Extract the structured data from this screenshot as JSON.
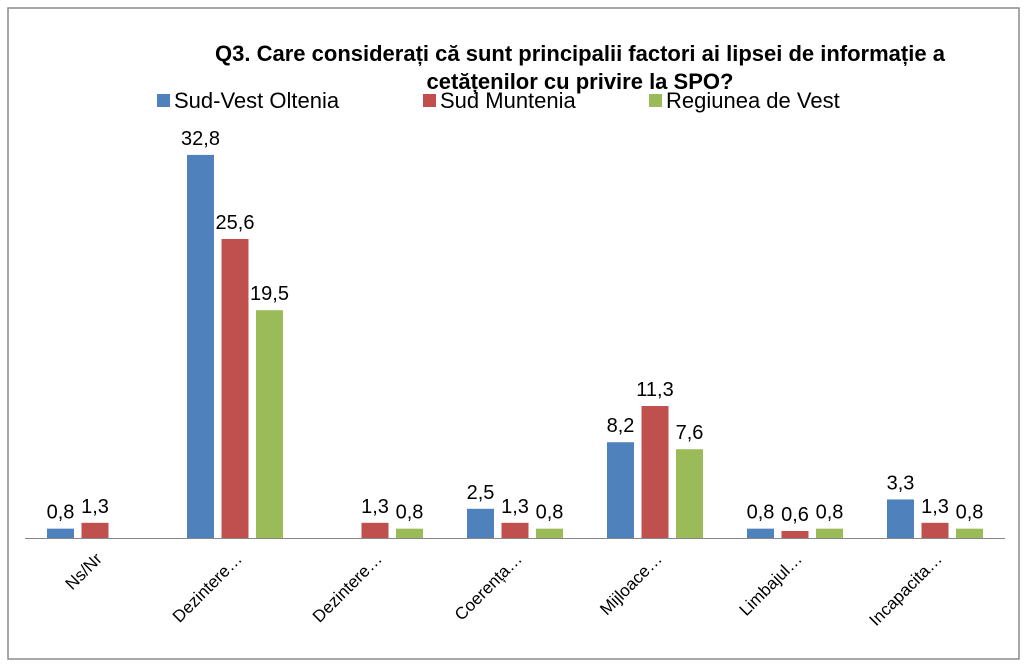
{
  "chart_data": {
    "type": "bar",
    "title": "Q3. Care considerați că sunt principalii factori ai lipsei de informație a cetățenilor cu privire la SPO?",
    "categories": [
      "Ns/Nr",
      "Dezintere…",
      "Dezintere…",
      "Coerența…",
      "Mijloace…",
      "Limbajul…",
      "Incapacita…"
    ],
    "series": [
      {
        "name": "Sud-Vest Oltenia",
        "color": "#4f81bd",
        "values": [
          0.8,
          32.8,
          null,
          2.5,
          8.2,
          0.8,
          3.3
        ],
        "value_labels": [
          "0,8",
          "32,8",
          null,
          "2,5",
          "8,2",
          "0,8",
          "3,3"
        ]
      },
      {
        "name": "Sud Muntenia",
        "color": "#c0504d",
        "values": [
          1.3,
          25.6,
          1.3,
          1.3,
          11.3,
          0.6,
          1.3
        ],
        "value_labels": [
          "1,3",
          "25,6",
          "1,3",
          "1,3",
          "11,3",
          "0,6",
          "1,3"
        ]
      },
      {
        "name": "Regiunea de Vest",
        "color": "#9bbb59",
        "values": [
          null,
          19.5,
          0.8,
          0.8,
          7.6,
          0.8,
          0.8
        ],
        "value_labels": [
          null,
          "19,5",
          "0,8",
          "0,8",
          "7,6",
          "0,8",
          "0,8"
        ]
      }
    ]
  }
}
